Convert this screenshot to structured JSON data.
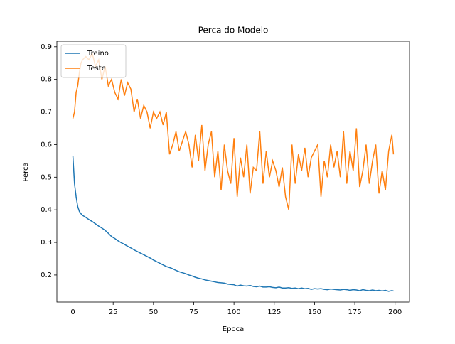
{
  "chart_data": {
    "type": "line",
    "title": "Perca do Modelo",
    "x_label": "Epoca",
    "y_label": "Perca",
    "x": [
      0,
      1,
      2,
      3,
      4,
      5,
      6,
      8,
      10,
      12,
      14,
      16,
      18,
      20,
      22,
      24,
      26,
      28,
      30,
      32,
      34,
      36,
      38,
      40,
      42,
      44,
      46,
      48,
      50,
      52,
      54,
      56,
      58,
      60,
      62,
      64,
      66,
      68,
      70,
      72,
      74,
      76,
      78,
      80,
      82,
      84,
      86,
      88,
      90,
      92,
      94,
      96,
      98,
      100,
      102,
      104,
      106,
      108,
      110,
      112,
      114,
      116,
      118,
      120,
      122,
      124,
      126,
      128,
      130,
      132,
      134,
      136,
      138,
      140,
      142,
      144,
      146,
      148,
      150,
      152,
      154,
      156,
      158,
      160,
      162,
      164,
      166,
      168,
      170,
      172,
      174,
      176,
      178,
      180,
      182,
      184,
      186,
      188,
      190,
      192,
      194,
      196,
      198,
      199
    ],
    "series": [
      {
        "name": "Treino",
        "color": "#1f77b4",
        "values": [
          0.565,
          0.48,
          0.44,
          0.41,
          0.395,
          0.388,
          0.383,
          0.377,
          0.37,
          0.364,
          0.357,
          0.35,
          0.344,
          0.337,
          0.328,
          0.318,
          0.312,
          0.305,
          0.299,
          0.294,
          0.288,
          0.283,
          0.277,
          0.272,
          0.267,
          0.262,
          0.257,
          0.252,
          0.246,
          0.241,
          0.236,
          0.231,
          0.226,
          0.223,
          0.219,
          0.214,
          0.21,
          0.207,
          0.204,
          0.2,
          0.197,
          0.193,
          0.19,
          0.188,
          0.185,
          0.183,
          0.181,
          0.179,
          0.177,
          0.176,
          0.175,
          0.172,
          0.171,
          0.17,
          0.166,
          0.169,
          0.167,
          0.166,
          0.168,
          0.165,
          0.164,
          0.166,
          0.163,
          0.163,
          0.164,
          0.162,
          0.161,
          0.163,
          0.16,
          0.16,
          0.161,
          0.159,
          0.16,
          0.158,
          0.16,
          0.158,
          0.159,
          0.156,
          0.158,
          0.157,
          0.158,
          0.156,
          0.155,
          0.157,
          0.156,
          0.155,
          0.154,
          0.156,
          0.155,
          0.153,
          0.155,
          0.154,
          0.152,
          0.155,
          0.153,
          0.152,
          0.154,
          0.152,
          0.153,
          0.151,
          0.153,
          0.15,
          0.152,
          0.151
        ]
      },
      {
        "name": "Teste",
        "color": "#ff7f0e",
        "values": [
          0.68,
          0.7,
          0.76,
          0.78,
          0.82,
          0.85,
          0.86,
          0.87,
          0.86,
          0.88,
          0.84,
          0.86,
          0.8,
          0.84,
          0.78,
          0.8,
          0.76,
          0.74,
          0.8,
          0.75,
          0.79,
          0.77,
          0.7,
          0.74,
          0.68,
          0.72,
          0.7,
          0.65,
          0.7,
          0.68,
          0.7,
          0.66,
          0.7,
          0.57,
          0.6,
          0.64,
          0.58,
          0.61,
          0.64,
          0.6,
          0.53,
          0.63,
          0.55,
          0.66,
          0.52,
          0.6,
          0.64,
          0.5,
          0.58,
          0.46,
          0.6,
          0.52,
          0.48,
          0.62,
          0.44,
          0.56,
          0.5,
          0.6,
          0.45,
          0.53,
          0.52,
          0.64,
          0.48,
          0.58,
          0.5,
          0.55,
          0.52,
          0.47,
          0.53,
          0.44,
          0.4,
          0.6,
          0.48,
          0.57,
          0.52,
          0.59,
          0.5,
          0.56,
          0.58,
          0.6,
          0.44,
          0.55,
          0.5,
          0.6,
          0.53,
          0.58,
          0.5,
          0.64,
          0.48,
          0.58,
          0.52,
          0.65,
          0.47,
          0.52,
          0.6,
          0.48,
          0.55,
          0.6,
          0.45,
          0.52,
          0.46,
          0.58,
          0.63,
          0.57
        ]
      }
    ],
    "xlim": [
      -9.95,
      208.95
    ],
    "xticks": [
      0,
      25,
      50,
      75,
      100,
      125,
      150,
      175,
      200
    ],
    "ylim": [
      0.117,
      0.917
    ],
    "yticks": [
      0.2,
      0.3,
      0.4,
      0.5,
      0.6,
      0.7,
      0.8,
      0.9
    ],
    "legend": "upper left"
  }
}
